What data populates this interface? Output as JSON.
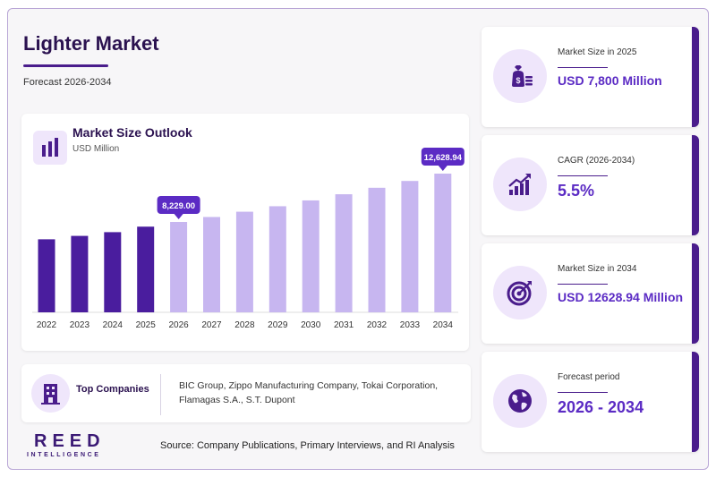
{
  "header": {
    "title": "Lighter Market",
    "subtitle": "Forecast 2026-2034"
  },
  "chart_data": {
    "type": "bar",
    "title": "Market Size Outlook",
    "unit": "USD Million",
    "categories": [
      "2022",
      "2023",
      "2024",
      "2025",
      "2026",
      "2027",
      "2028",
      "2029",
      "2030",
      "2031",
      "2032",
      "2033",
      "2034"
    ],
    "values": [
      6650,
      6960,
      7300,
      7800,
      8229.0,
      8680,
      9160,
      9660,
      10190,
      10750,
      11340,
      11960,
      12628.94
    ],
    "callouts": [
      {
        "category": "2026",
        "label": "8,229.00"
      },
      {
        "category": "2034",
        "label": "12,628.94"
      }
    ],
    "historical_color": "#4a1d9e",
    "forecast_color": "#c7b6f0",
    "callout_color": "#5b2bc4",
    "ylim": [
      0,
      13500
    ]
  },
  "companies": {
    "label": "Top Companies",
    "list": "BIC Group, Zippo Manufacturing Company, Tokai Corporation, Flamagas S.A., S.T. Dupont"
  },
  "logo": {
    "name": "REED",
    "tagline": "INTELLIGENCE"
  },
  "source": "Source: Company Publications, Primary Interviews, and RI Analysis",
  "kpis": [
    {
      "label": "Market Size in 2025",
      "value": "USD 7,800 Million",
      "icon": "money-bag-icon"
    },
    {
      "label": "CAGR (2026-2034)",
      "value": "5.5%",
      "icon": "growth-chart-icon"
    },
    {
      "label": "Market Size in 2034",
      "value": "USD 12628.94 Million",
      "icon": "target-icon"
    },
    {
      "label": "Forecast period",
      "value": "2026 - 2034",
      "icon": "globe-icon"
    }
  ],
  "colors": {
    "accent": "#4a1d8c",
    "value_text": "#5b2bc4",
    "icon_bg": "#efe6fb"
  }
}
